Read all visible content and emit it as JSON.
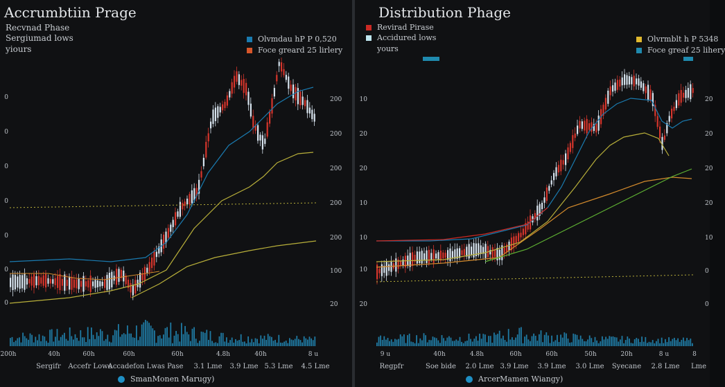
{
  "colors": {
    "up": "#d7e3ee",
    "down": "#d6352c",
    "blue": "#1a7bb0",
    "olive": "#b9b03a",
    "orange": "#d38a2c",
    "green": "#5fb233",
    "red": "#cc2a24",
    "volume": "#1f7aa3"
  },
  "left": {
    "title": "Accrumbtiin Prage",
    "subtitle_lines": [
      "Recvnad Phase",
      "Sergiumad lows",
      "yiours"
    ],
    "legend": [
      {
        "label": "Olvmdau hP  P 0,520",
        "color": "#1a7bb0"
      },
      {
        "label": "Foce greard  25 lirlery",
        "color": "#d7562a"
      }
    ],
    "y_ticks_left": [
      "0",
      "0",
      "0",
      "0",
      "0",
      "0",
      "0"
    ],
    "y_ticks_right": [
      "200",
      "200",
      "200",
      "200",
      "200",
      "100",
      "20"
    ],
    "x_ticks": [
      "200h",
      "40h",
      "60h",
      "60h",
      "60h",
      "4.8h",
      "40h",
      "8 u"
    ],
    "categories": [
      "Sergifr",
      "Accefr  Lowe",
      "Accadefon  Lwas Pase",
      "3.1 Lme",
      "3.9 Lme",
      "5.3 Lme",
      "4.5 Lme"
    ],
    "footer": "SmanMonen Marugy)"
  },
  "right": {
    "title": "Distribution Phage",
    "subtitle_lines": [
      "Revirad Pirase",
      "Accidured lows",
      "yours"
    ],
    "legend_left": [
      {
        "label": "Revirad Pirase",
        "color": "#cc2a24"
      },
      {
        "label": "Accidured lows",
        "color": "#bfe6ef"
      }
    ],
    "legend": [
      {
        "label": "Olvrmblt  h  P 5348",
        "color": "#e0b82e"
      },
      {
        "label": "Foce greaf  25 lihery",
        "color": "#1f8aae"
      }
    ],
    "y_ticks_left": [
      "10",
      "20",
      "20",
      "10",
      "10",
      "10",
      "20"
    ],
    "y_ticks_right": [
      "20",
      "20",
      "20",
      "20",
      "10",
      "0",
      "0"
    ],
    "x_ticks": [
      "9 u",
      "40h",
      "4.8h",
      "60h",
      "60h",
      "50h",
      "20h",
      "8 u",
      "8"
    ],
    "categories": [
      "Regpfr",
      "Soe bide",
      "2.0 Lme",
      "3.9 Lme",
      "3.9 Lme",
      "3.0 Lme",
      "Syecane",
      "2.8 Lme",
      "Lme"
    ],
    "footer": "ArcerMamen Wiangy)"
  }
}
